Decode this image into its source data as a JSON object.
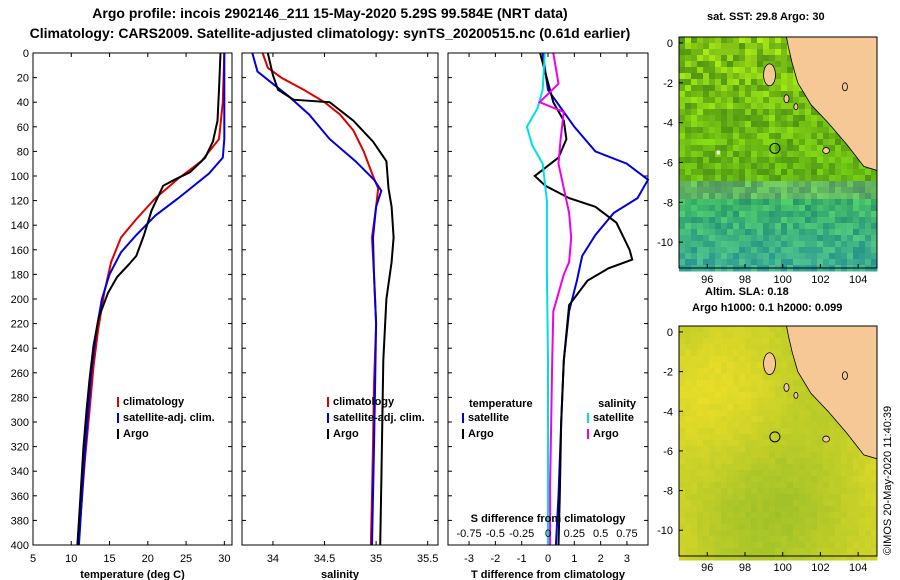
{
  "header": {
    "line1": "Argo profile: incois 2902146_211 15-May-2020 5.29S 99.584E (NRT data)",
    "line2": "Climatology: CARS2009. Satellite-adjusted climatology: synTS_20200515.nc (0.61d earlier)"
  },
  "credit": "©IMOS 20-May-2020 11:40:39",
  "colors": {
    "climatology": "#dd0000",
    "satellite": "#0000dd",
    "argo": "#000000",
    "sat_s": "#00e0e0",
    "argo_s": "#ee00ee",
    "land": "#f5c896"
  },
  "chart_data": [
    {
      "type": "line",
      "title": "",
      "xlabel": "temperature (deg C)",
      "ylabel": "",
      "xlim": [
        5,
        31
      ],
      "ylim": [
        400,
        0
      ],
      "xticks": [
        5,
        10,
        15,
        20,
        25,
        30
      ],
      "yticks": [
        0,
        20,
        40,
        60,
        80,
        100,
        120,
        140,
        160,
        180,
        200,
        220,
        240,
        260,
        280,
        300,
        320,
        340,
        360,
        380,
        400
      ],
      "legend": [
        "climatology",
        "satellite-adj. clim.",
        "Argo"
      ],
      "series": [
        {
          "name": "climatology",
          "color": "#dd0000",
          "points": [
            [
              30,
              0
            ],
            [
              29.8,
              40
            ],
            [
              29.3,
              70
            ],
            [
              27,
              88
            ],
            [
              24,
              102
            ],
            [
              21,
              118
            ],
            [
              18.5,
              135
            ],
            [
              16.5,
              150
            ],
            [
              15.2,
              170
            ],
            [
              14.3,
              195
            ],
            [
              13.5,
              225
            ],
            [
              12.9,
              255
            ],
            [
              12.4,
              290
            ],
            [
              11.8,
              330
            ],
            [
              11.3,
              370
            ],
            [
              10.9,
              400
            ]
          ]
        },
        {
          "name": "satellite-adj. clim.",
          "color": "#0000dd",
          "points": [
            [
              30,
              0
            ],
            [
              30,
              40
            ],
            [
              30,
              70
            ],
            [
              29.8,
              85
            ],
            [
              28,
              98
            ],
            [
              24,
              118
            ],
            [
              21,
              132
            ],
            [
              18.5,
              148
            ],
            [
              16.5,
              162
            ],
            [
              15,
              180
            ],
            [
              14,
              200
            ],
            [
              13.3,
              225
            ],
            [
              12.6,
              260
            ],
            [
              12.1,
              300
            ],
            [
              11.6,
              340
            ],
            [
              11.2,
              380
            ],
            [
              11,
              400
            ]
          ]
        },
        {
          "name": "Argo",
          "color": "#000000",
          "points": [
            [
              29.5,
              0
            ],
            [
              29.3,
              30
            ],
            [
              29.1,
              55
            ],
            [
              28.5,
              72
            ],
            [
              27.5,
              85
            ],
            [
              25.5,
              97
            ],
            [
              23.5,
              103
            ],
            [
              22,
              108
            ],
            [
              20.5,
              128
            ],
            [
              19.5,
              148
            ],
            [
              18.5,
              165
            ],
            [
              17.5,
              172
            ],
            [
              16,
              182
            ],
            [
              14.8,
              195
            ],
            [
              13.6,
              215
            ],
            [
              12.9,
              238
            ],
            [
              12.4,
              265
            ],
            [
              12,
              290
            ],
            [
              11.6,
              320
            ],
            [
              11.2,
              360
            ],
            [
              10.8,
              400
            ]
          ]
        }
      ]
    },
    {
      "type": "line",
      "title": "",
      "xlabel": "salinity",
      "ylabel": "",
      "xlim": [
        33.7,
        35.6
      ],
      "ylim": [
        400,
        0
      ],
      "xticks": [
        34,
        34.5,
        35,
        35.5
      ],
      "legend": [
        "climatology",
        "satellite-adj. clim.",
        "Argo"
      ],
      "series": [
        {
          "name": "climatology",
          "color": "#dd0000",
          "points": [
            [
              33.9,
              0
            ],
            [
              33.95,
              12
            ],
            [
              34.08,
              20
            ],
            [
              34.3,
              30
            ],
            [
              34.5,
              40
            ],
            [
              34.65,
              50
            ],
            [
              34.78,
              63
            ],
            [
              34.88,
              80
            ],
            [
              34.97,
              100
            ],
            [
              35.02,
              110
            ],
            [
              35.0,
              125
            ],
            [
              34.96,
              150
            ],
            [
              34.98,
              180
            ],
            [
              35.0,
              220
            ],
            [
              34.98,
              270
            ],
            [
              34.97,
              320
            ],
            [
              34.96,
              360
            ],
            [
              34.95,
              400
            ]
          ]
        },
        {
          "name": "satellite-adj. clim.",
          "color": "#0000dd",
          "points": [
            [
              33.8,
              0
            ],
            [
              33.85,
              15
            ],
            [
              34.0,
              25
            ],
            [
              34.15,
              35
            ],
            [
              34.35,
              50
            ],
            [
              34.55,
              70
            ],
            [
              34.8,
              88
            ],
            [
              34.98,
              103
            ],
            [
              35.05,
              112
            ],
            [
              35.0,
              125
            ],
            [
              34.97,
              150
            ],
            [
              34.98,
              180
            ],
            [
              35.0,
              220
            ],
            [
              34.99,
              270
            ],
            [
              34.98,
              320
            ],
            [
              34.97,
              360
            ],
            [
              34.96,
              400
            ]
          ]
        },
        {
          "name": "Argo",
          "color": "#000000",
          "points": [
            [
              33.95,
              0
            ],
            [
              34.0,
              18
            ],
            [
              34.05,
              30
            ],
            [
              34.2,
              38
            ],
            [
              34.55,
              40
            ],
            [
              34.78,
              55
            ],
            [
              34.97,
              72
            ],
            [
              35.1,
              88
            ],
            [
              35.12,
              110
            ],
            [
              35.15,
              125
            ],
            [
              35.17,
              150
            ],
            [
              35.15,
              170
            ],
            [
              35.1,
              200
            ],
            [
              35.07,
              250
            ],
            [
              35.06,
              300
            ],
            [
              35.05,
              350
            ],
            [
              35.04,
              400
            ]
          ]
        }
      ]
    },
    {
      "type": "line",
      "title": "",
      "xlabel": "T difference from climatology",
      "x2label": "S difference from climatology",
      "ylabel": "",
      "xlim": [
        -3.8,
        3.8
      ],
      "ylim": [
        400,
        0
      ],
      "xticks": [
        -3,
        -2,
        -1,
        0,
        1,
        2,
        3
      ],
      "x2ticks": [
        -0.75,
        -0.5,
        -0.25,
        0,
        0.25,
        0.5,
        0.75
      ],
      "x2ticklabels": [
        "-0.75",
        "-0.5",
        "-0.25",
        "0",
        "0.25",
        "0.5",
        "0.75"
      ],
      "legend_left_title": "temperature",
      "legend_right_title": "salinity",
      "legend": [
        "satellite",
        "Argo",
        "satellite",
        "Argo"
      ],
      "series": [
        {
          "name": "temperature satellite",
          "color": "#0000dd",
          "axis": "T",
          "points": [
            [
              -0.2,
              0
            ],
            [
              0,
              30
            ],
            [
              0.5,
              45
            ],
            [
              1,
              60
            ],
            [
              1.8,
              80
            ],
            [
              3,
              90
            ],
            [
              3.8,
              103
            ],
            [
              3.4,
              118
            ],
            [
              2.5,
              130
            ],
            [
              1.8,
              148
            ],
            [
              1.3,
              165
            ],
            [
              1.1,
              185
            ],
            [
              0.8,
              210
            ],
            [
              0.6,
              250
            ],
            [
              0.5,
              300
            ],
            [
              0.4,
              360
            ],
            [
              0.3,
              400
            ]
          ]
        },
        {
          "name": "temperature Argo",
          "color": "#000000",
          "axis": "T",
          "points": [
            [
              -0.3,
              0
            ],
            [
              0.2,
              40
            ],
            [
              0.6,
              55
            ],
            [
              0.7,
              70
            ],
            [
              0.4,
              85
            ],
            [
              -0.5,
              100
            ],
            [
              -0.1,
              108
            ],
            [
              0.8,
              118
            ],
            [
              1.8,
              125
            ],
            [
              2.6,
              138
            ],
            [
              3.1,
              160
            ],
            [
              3.2,
              168
            ],
            [
              2.3,
              175
            ],
            [
              1.5,
              185
            ],
            [
              0.8,
              205
            ],
            [
              0.6,
              250
            ],
            [
              0.5,
              300
            ],
            [
              0.45,
              360
            ],
            [
              0.4,
              400
            ]
          ]
        },
        {
          "name": "salinity satellite",
          "color": "#00e0e0",
          "axis": "S",
          "points": [
            [
              -0.03,
              0
            ],
            [
              -0.05,
              30
            ],
            [
              -0.1,
              45
            ],
            [
              -0.2,
              60
            ],
            [
              -0.15,
              75
            ],
            [
              -0.05,
              90
            ],
            [
              -0.01,
              120
            ],
            [
              -0.01,
              180
            ],
            [
              0,
              250
            ],
            [
              0,
              300
            ],
            [
              0,
              350
            ],
            [
              0,
              400
            ]
          ]
        },
        {
          "name": "salinity Argo",
          "color": "#ee00ee",
          "axis": "S",
          "points": [
            [
              0.05,
              0
            ],
            [
              0.1,
              25
            ],
            [
              -0.08,
              40
            ],
            [
              0.15,
              48
            ],
            [
              0.12,
              70
            ],
            [
              0.1,
              90
            ],
            [
              0.15,
              110
            ],
            [
              0.2,
              130
            ],
            [
              0.22,
              150
            ],
            [
              0.2,
              170
            ],
            [
              0.15,
              180
            ],
            [
              0.05,
              210
            ],
            [
              0.04,
              250
            ],
            [
              0.03,
              300
            ],
            [
              0.02,
              350
            ],
            [
              0.02,
              400
            ]
          ]
        }
      ]
    },
    {
      "type": "heatmap",
      "title": "sat. SST: 29.8 Argo: 30",
      "xlim": [
        94.5,
        105
      ],
      "ylim": [
        -11.3,
        0.3
      ],
      "xticks": [
        96,
        98,
        100,
        102,
        104
      ],
      "yticks": [
        0,
        -2,
        -4,
        -6,
        -8,
        -10
      ],
      "marker": [
        99.584,
        -5.29
      ]
    },
    {
      "type": "heatmap",
      "title": "Altim. SLA: 0.18",
      "subtitle": "Argo h1000: 0.1 h2000: 0.099",
      "xlim": [
        94.5,
        105
      ],
      "ylim": [
        -11.3,
        0.3
      ],
      "xticks": [
        96,
        98,
        100,
        102,
        104
      ],
      "yticks": [
        0,
        -2,
        -4,
        -6,
        -8,
        -10
      ],
      "marker": [
        99.584,
        -5.29
      ]
    }
  ]
}
